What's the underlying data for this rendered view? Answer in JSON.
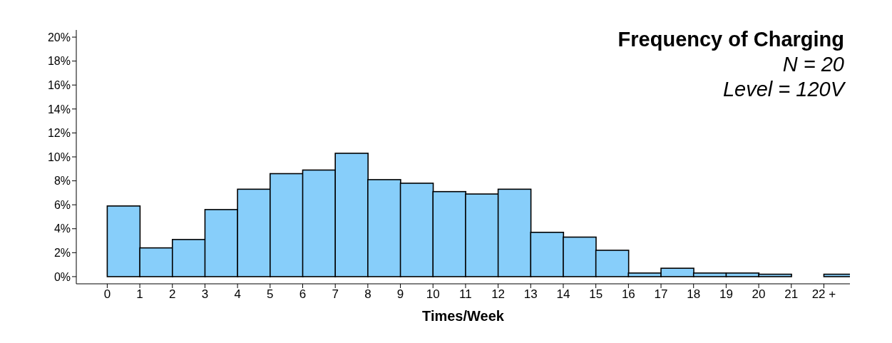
{
  "chart_data": {
    "type": "histogram",
    "title": "Frequency of Charging",
    "subtitle": "N = 20",
    "annotations": [
      "Level = 120V"
    ],
    "xlabel": "Times/Week",
    "bins": [
      0,
      1,
      2,
      3,
      4,
      5,
      6,
      7,
      8,
      9,
      10,
      11,
      12,
      13,
      14,
      15,
      16,
      17,
      18,
      19,
      20,
      21,
      22,
      23
    ],
    "values": [
      5.9,
      2.4,
      3.1,
      5.6,
      7.3,
      8.6,
      8.9,
      10.3,
      8.1,
      7.8,
      7.1,
      6.9,
      7.3,
      3.7,
      3.3,
      2.2,
      0.3,
      0.7,
      0.3,
      0.3,
      0.2,
      0,
      0.2
    ],
    "color": "#87cefa",
    "xlim": [
      -0.95,
      22.8
    ],
    "xticks": [
      0,
      1,
      2,
      3,
      4,
      5,
      6,
      7,
      8,
      9,
      10,
      11,
      12,
      13,
      14,
      15,
      16,
      17,
      18,
      19,
      20,
      21,
      {
        "value": 22,
        "label": "22 +"
      }
    ],
    "ylim": [
      -0.6,
      20.6
    ],
    "yticks": [
      {
        "value": 0,
        "label": "0%"
      },
      {
        "value": 2,
        "label": "2%"
      },
      {
        "value": 4,
        "label": "4%"
      },
      {
        "value": 6,
        "label": "6%"
      },
      {
        "value": 8,
        "label": "8%"
      },
      {
        "value": 10,
        "label": "10%"
      },
      {
        "value": 12,
        "label": "12%"
      },
      {
        "value": 14,
        "label": "14%"
      },
      {
        "value": 16,
        "label": "16%"
      },
      {
        "value": 18,
        "label": "18%"
      },
      {
        "value": 20,
        "label": "20%"
      }
    ]
  }
}
